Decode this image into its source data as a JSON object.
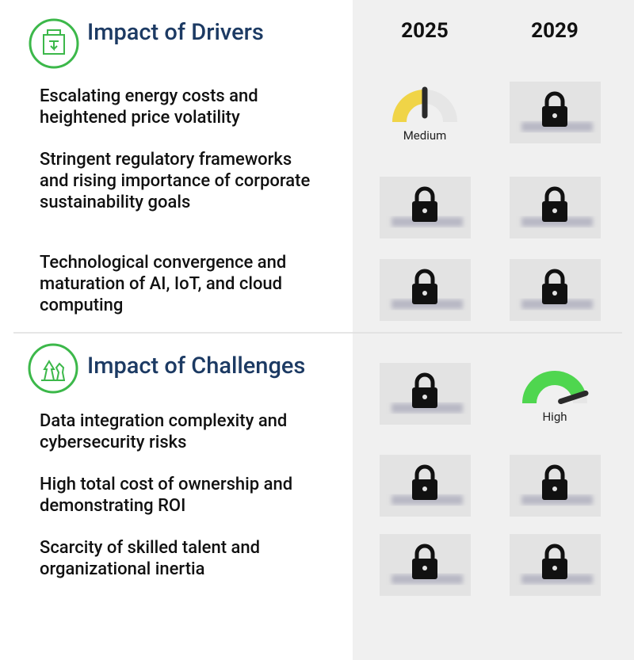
{
  "columns": [
    "2025",
    "2029"
  ],
  "sections": [
    {
      "title": "Impact of Drivers",
      "rows": [
        {
          "label": "Escalating energy costs and heightened price volatility",
          "cells": [
            {
              "label": "Medium",
              "level": 0.5,
              "color": "#f0d447"
            },
            null
          ]
        },
        {
          "label": "Stringent regulatory frameworks and rising importance of corporate sustainability goals",
          "cells": [
            null,
            null
          ]
        },
        {
          "label": "Technological convergence and maturation of AI, IoT, and cloud computing",
          "cells": [
            null,
            null
          ]
        }
      ]
    },
    {
      "title": "Impact of Challenges",
      "rows": [
        {
          "label": "Data integration complexity and cybersecurity risks",
          "cells": [
            null,
            {
              "label": "High",
              "level": 0.9,
              "color": "#4fd64f"
            }
          ]
        },
        {
          "label": "High total cost of ownership and demonstrating ROI",
          "cells": [
            null,
            null
          ]
        },
        {
          "label": "Scarcity of skilled talent and organizational inertia",
          "cells": [
            null,
            null
          ]
        }
      ]
    }
  ]
}
